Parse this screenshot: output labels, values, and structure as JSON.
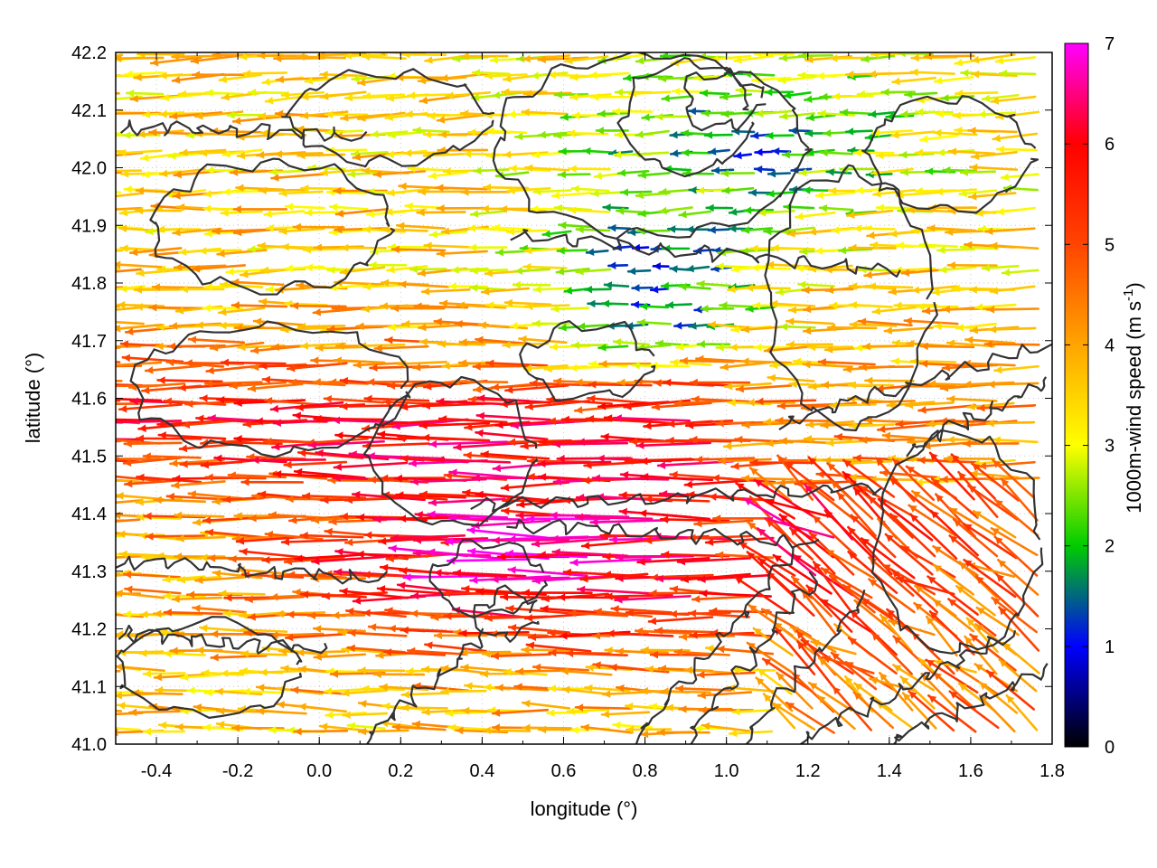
{
  "chart_data": {
    "type": "vector-field",
    "xlabel": "longitude (°)",
    "ylabel": "latitude (°)",
    "xlim": [
      -0.5,
      1.8
    ],
    "ylim": [
      41.0,
      42.2
    ],
    "xticks": [
      "-0.4",
      "-0.2",
      "0.0",
      "0.2",
      "0.4",
      "0.6",
      "0.8",
      "1.0",
      "1.2",
      "1.4",
      "1.6",
      "1.8"
    ],
    "yticks": [
      "41.0",
      "41.1",
      "41.2",
      "41.3",
      "41.4",
      "41.5",
      "41.6",
      "41.7",
      "41.8",
      "41.9",
      "42.0",
      "42.1",
      "42.2"
    ],
    "grid": true,
    "colorbar": {
      "label_main": "1000m-wind speed (m s",
      "label_sup": "-1",
      "label_end": ")",
      "range": [
        0,
        7
      ],
      "ticks": [
        "0",
        "1",
        "2",
        "3",
        "4",
        "5",
        "6",
        "7"
      ],
      "colors": [
        "#000000",
        "#0000ff",
        "#00cc00",
        "#ffff00",
        "#ffa500",
        "#ff4500",
        "#ff0000",
        "#ff00ff"
      ]
    },
    "contour_color": "#333333"
  }
}
